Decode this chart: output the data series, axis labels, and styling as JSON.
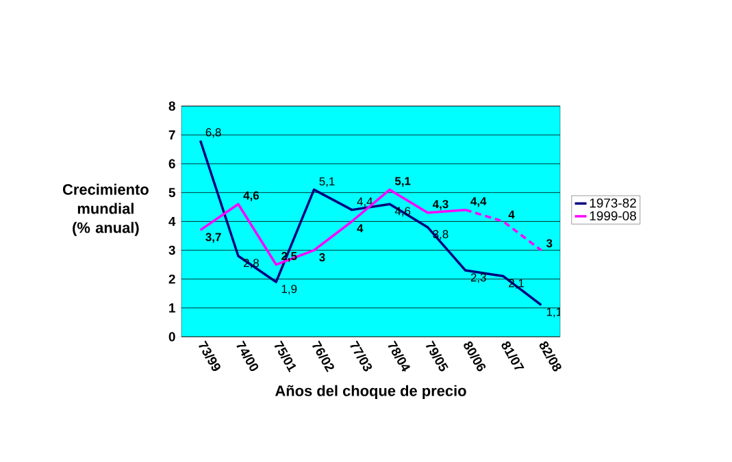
{
  "chart_data": {
    "type": "line",
    "xlabel": "Años del choque de precio",
    "ylabel": "Crecimiento mundial (% anual)",
    "categories": [
      "73/99",
      "74/00",
      "75/01",
      "76/02",
      "77/03",
      "78/04",
      "79/05",
      "80/06",
      "81/07",
      "82/08"
    ],
    "ylim": [
      0,
      8
    ],
    "yticks": [
      0,
      1,
      2,
      3,
      4,
      5,
      6,
      7,
      8
    ],
    "grid": "y",
    "legend": "right",
    "series": [
      {
        "name": "1973-82",
        "color": "#000080",
        "line_style": "solid",
        "values": [
          6.8,
          2.8,
          1.9,
          5.1,
          4.4,
          4.6,
          3.8,
          2.3,
          2.1,
          1.1
        ],
        "value_labels": [
          "6,8",
          "2,8",
          "1,9",
          "5,1",
          "4,4",
          "4,6",
          "3,8",
          "2,3",
          "2,1",
          "1,1"
        ]
      },
      {
        "name": "1999-08",
        "color": "#ff00ff",
        "line_style": "solid",
        "values": [
          3.7,
          4.6,
          2.5,
          3,
          4,
          5.1,
          4.3,
          4.4,
          null,
          null
        ],
        "value_labels": [
          "**3,7**",
          "**4,6**",
          "**2,5**",
          "**3**",
          "**4**",
          "**5,1**",
          "**4,3**",
          "**4,4**",
          null,
          null
        ]
      },
      {
        "color": "#ff00ff",
        "line_style": "dashed",
        "values": [
          null,
          null,
          null,
          null,
          null,
          null,
          null,
          4.4,
          4,
          3
        ],
        "value_labels": [
          null,
          null,
          null,
          null,
          null,
          null,
          null,
          null,
          "**4**",
          "**3**"
        ]
      }
    ]
  }
}
